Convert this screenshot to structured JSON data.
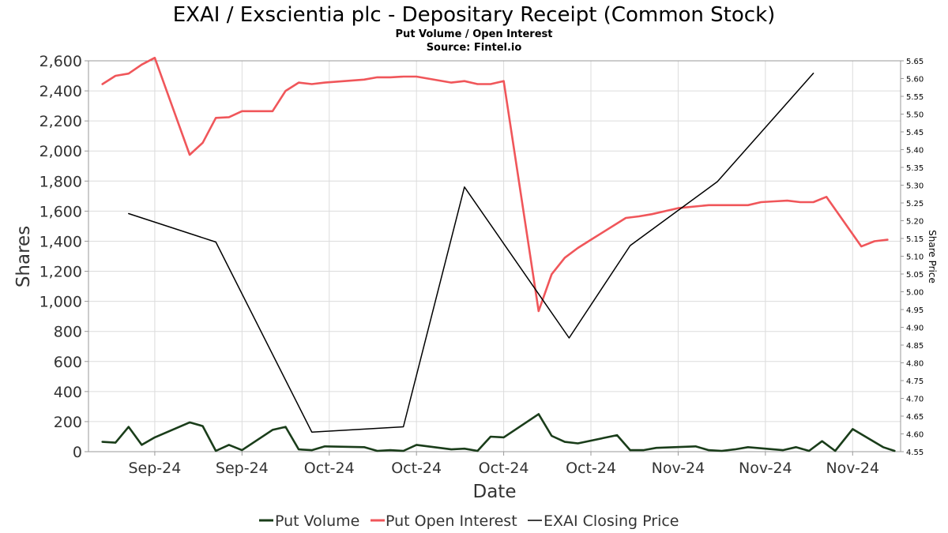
{
  "chart_data": {
    "type": "line",
    "title": "EXAI / Exscientia plc - Depositary Receipt (Common Stock)",
    "subtitle_lines": [
      "Put Volume / Open Interest",
      "Source: Fintel.io"
    ],
    "xlabel": "Date",
    "ylabel": "Shares",
    "y2label": "Share Price",
    "ylim": [
      0,
      2600
    ],
    "y2lim": [
      4.55,
      5.65
    ],
    "y_ticks": [
      "0",
      "200",
      "400",
      "600",
      "800",
      "1,000",
      "1,200",
      "1,400",
      "1,600",
      "1,800",
      "2,000",
      "2,200",
      "2,400",
      "2,600"
    ],
    "y2_ticks": [
      "4.55",
      "4.60",
      "4.65",
      "4.70",
      "4.75",
      "4.80",
      "4.85",
      "4.90",
      "4.95",
      "5.00",
      "5.05",
      "5.10",
      "5.15",
      "5.20",
      "5.25",
      "5.30",
      "5.35",
      "5.40",
      "5.45",
      "5.50",
      "5.55",
      "5.60",
      "5.65"
    ],
    "x_ticks": [
      {
        "label": "Sep-24",
        "day": 17
      },
      {
        "label": "Sep-24",
        "day": 27
      },
      {
        "label": "Oct-24",
        "day": 37
      },
      {
        "label": "Oct-24",
        "day": 47
      },
      {
        "label": "Oct-24",
        "day": 57
      },
      {
        "label": "Oct-24",
        "day": 67
      },
      {
        "label": "Nov-24",
        "day": 77
      },
      {
        "label": "Nov-24",
        "day": 87
      },
      {
        "label": "Nov-24",
        "day": 97
      }
    ],
    "x_range_days": [
      9.4,
      102.5
    ],
    "grid": true,
    "legend_position": "bottom",
    "series": [
      {
        "name": "Put Volume",
        "axis": "left",
        "color": "#1a3d1a",
        "x": [
          11,
          12.5,
          14,
          15.5,
          17,
          21,
          22.5,
          24,
          25.5,
          27,
          30.5,
          32,
          33.5,
          35,
          36.5,
          41,
          42.5,
          44,
          45.5,
          47,
          51,
          52.5,
          54,
          55.5,
          57,
          61,
          62.5,
          64,
          65.5,
          70,
          71.5,
          73,
          74.5,
          79,
          80.5,
          82,
          83.5,
          85,
          89,
          90.5,
          92,
          93.5,
          95,
          97,
          100.5,
          101.8
        ],
        "values": [
          65,
          60,
          165,
          45,
          95,
          195,
          170,
          5,
          45,
          10,
          145,
          165,
          15,
          10,
          35,
          30,
          5,
          10,
          5,
          45,
          15,
          20,
          5,
          100,
          95,
          250,
          105,
          65,
          55,
          110,
          10,
          10,
          25,
          35,
          10,
          5,
          15,
          30,
          10,
          30,
          5,
          70,
          5,
          150,
          30,
          5
        ]
      },
      {
        "name": "Put Open Interest",
        "axis": "left",
        "color": "#f0565a",
        "x": [
          11,
          12.5,
          14,
          15.5,
          17,
          21,
          22.5,
          24,
          25.5,
          27,
          30.5,
          32,
          33.5,
          35,
          36.5,
          41,
          42.5,
          44,
          45.5,
          47,
          51,
          52.5,
          54,
          55.5,
          57,
          61,
          62.5,
          64,
          65.5,
          67,
          71,
          72.5,
          74,
          75.5,
          77,
          80.5,
          82,
          83.5,
          85,
          86.5,
          88,
          89.5,
          91,
          92.5,
          94,
          98,
          99.5,
          101
        ],
        "values": [
          2445,
          2500,
          2515,
          2575,
          2620,
          1975,
          2055,
          2220,
          2225,
          2265,
          2265,
          2400,
          2455,
          2445,
          2455,
          2475,
          2490,
          2490,
          2495,
          2495,
          2455,
          2465,
          2445,
          2445,
          2465,
          935,
          1180,
          1290,
          1355,
          1410,
          1555,
          1565,
          1580,
          1600,
          1620,
          1640,
          1640,
          1640,
          1640,
          1660,
          1665,
          1670,
          1660,
          1660,
          1695,
          1365,
          1400,
          1410
        ]
      },
      {
        "name": "EXAI Closing Price",
        "axis": "right",
        "color": "#000000",
        "x": [
          14,
          24,
          35,
          45.5,
          52.5,
          64.5,
          71.5,
          81.5,
          92.5
        ],
        "values": [
          5.22,
          5.14,
          4.605,
          4.62,
          5.295,
          4.87,
          5.13,
          5.31,
          5.615
        ]
      }
    ]
  }
}
